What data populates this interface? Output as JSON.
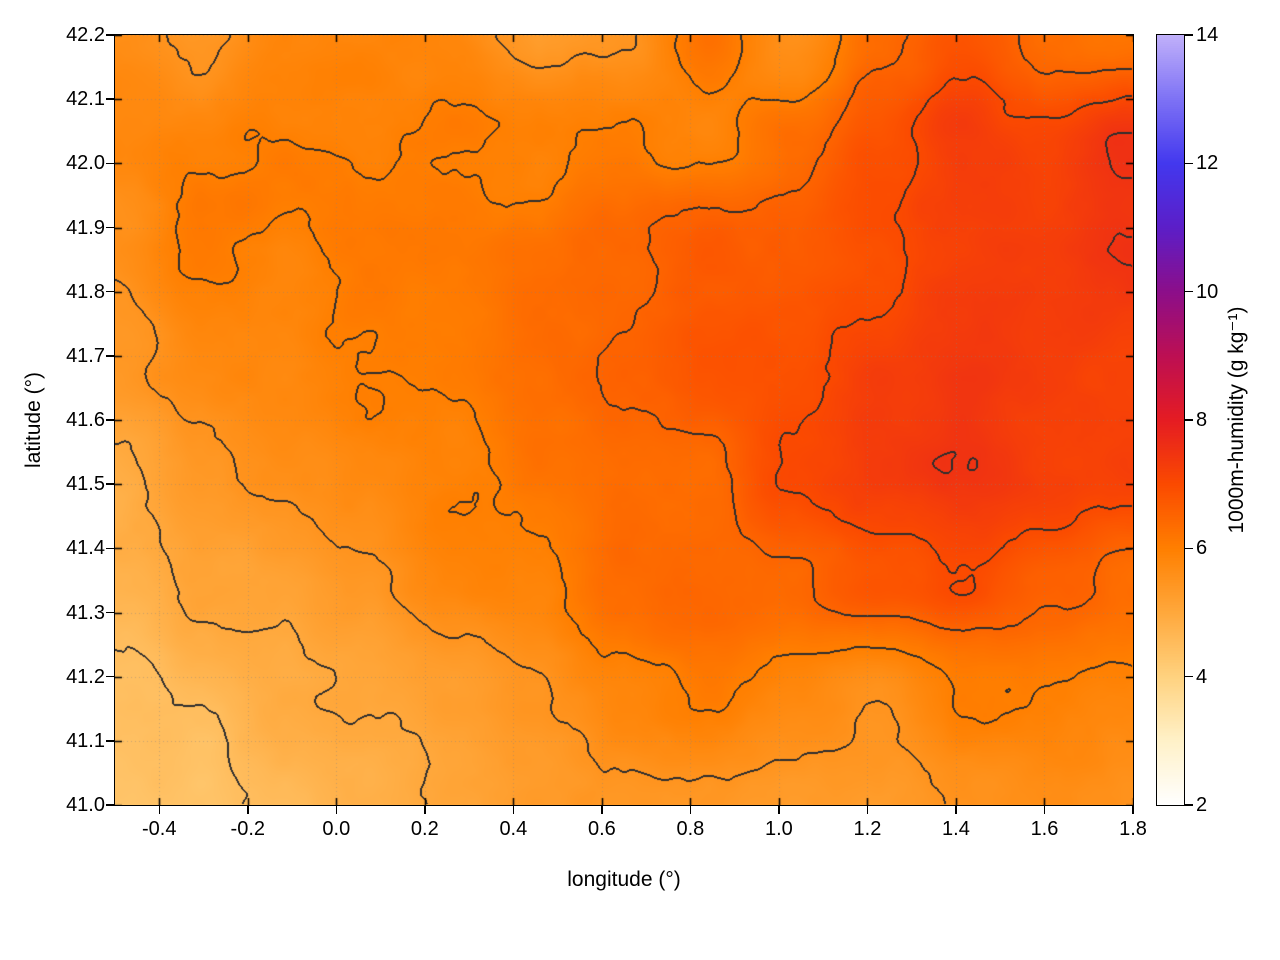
{
  "chart_data": {
    "type": "heatmap",
    "title": "",
    "xlabel": "longitude (°)",
    "ylabel": "latitude (°)",
    "colorbar_label": "1000m-humidity (g kg⁻¹)",
    "xlim": [
      -0.5,
      1.8
    ],
    "ylim": [
      41.0,
      42.2
    ],
    "grid": {
      "show": true,
      "color": "rgba(130,130,130,0.45)"
    },
    "x_ticks": [
      -0.4,
      -0.2,
      0.0,
      0.2,
      0.4,
      0.6,
      0.8,
      1.0,
      1.2,
      1.4,
      1.6,
      1.8
    ],
    "x_tick_labels": [
      "-0.4",
      "-0.2",
      "0.0",
      "0.2",
      "0.4",
      "0.6",
      "0.8",
      "1.0",
      "1.2",
      "1.4",
      "1.6",
      "1.8"
    ],
    "y_ticks": [
      41.0,
      41.1,
      41.2,
      41.3,
      41.4,
      41.5,
      41.6,
      41.7,
      41.8,
      41.9,
      42.0,
      42.1,
      42.2
    ],
    "y_tick_labels": [
      "41.0",
      "41.1",
      "41.2",
      "41.3",
      "41.4",
      "41.5",
      "41.6",
      "41.7",
      "41.8",
      "41.9",
      "42.0",
      "42.1",
      "42.2"
    ],
    "colorbar": {
      "range": [
        2,
        14
      ],
      "ticks": [
        2,
        4,
        6,
        8,
        10,
        12,
        14
      ],
      "tick_labels": [
        "2",
        "4",
        "6",
        "8",
        "10",
        "12",
        "14"
      ]
    },
    "palette": [
      {
        "value": 2,
        "color": "#ffffff"
      },
      {
        "value": 3,
        "color": "#fff1c8"
      },
      {
        "value": 4,
        "color": "#ffd27f"
      },
      {
        "value": 5,
        "color": "#ffa83c"
      },
      {
        "value": 6,
        "color": "#ff7f00"
      },
      {
        "value": 7,
        "color": "#fb4a00"
      },
      {
        "value": 8,
        "color": "#e51c23"
      },
      {
        "value": 9,
        "color": "#bd0f53"
      },
      {
        "value": 10,
        "color": "#8c0e8a"
      },
      {
        "value": 11,
        "color": "#5c1ec8"
      },
      {
        "value": 12,
        "color": "#4338ee"
      },
      {
        "value": 13,
        "color": "#7e72f5"
      },
      {
        "value": 14,
        "color": "#c0b0fa"
      }
    ],
    "contour_levels": [
      4.5,
      5.0,
      5.5,
      6.0,
      6.5,
      7.0,
      7.5
    ],
    "contour_color": "#2e2e2e",
    "field": {
      "lon_points": [
        -0.5,
        -0.31,
        -0.12,
        0.08,
        0.27,
        0.46,
        0.65,
        0.84,
        1.03,
        1.23,
        1.42,
        1.61,
        1.8
      ],
      "lat_points": [
        42.2,
        42.03,
        41.86,
        41.69,
        41.51,
        41.34,
        41.17,
        41.0
      ],
      "values": [
        [
          5.7,
          5.4,
          5.8,
          6.0,
          5.8,
          5.4,
          5.6,
          6.1,
          5.5,
          6.4,
          6.9,
          6.2,
          6.1
        ],
        [
          5.8,
          6.0,
          6.1,
          6.0,
          6.1,
          5.9,
          6.0,
          5.9,
          6.4,
          6.9,
          7.2,
          7.1,
          7.7
        ],
        [
          5.6,
          6.0,
          5.9,
          6.1,
          6.2,
          6.3,
          6.4,
          6.6,
          6.7,
          7.0,
          7.2,
          7.2,
          7.6
        ],
        [
          5.3,
          5.6,
          5.9,
          6.1,
          6.1,
          6.3,
          6.5,
          6.7,
          6.9,
          7.2,
          7.4,
          7.3,
          7.2
        ],
        [
          4.9,
          5.3,
          5.6,
          5.9,
          6.0,
          6.2,
          6.3,
          6.5,
          7.0,
          7.4,
          7.5,
          7.3,
          7.1
        ],
        [
          4.7,
          5.0,
          5.2,
          5.5,
          5.8,
          6.0,
          6.3,
          6.5,
          6.4,
          6.8,
          7.0,
          6.6,
          6.4
        ],
        [
          4.4,
          4.6,
          4.9,
          5.1,
          5.3,
          5.6,
          5.8,
          6.0,
          5.7,
          5.6,
          5.9,
          6.0,
          5.9
        ],
        [
          4.3,
          4.4,
          4.6,
          4.8,
          5.0,
          5.2,
          5.5,
          5.3,
          5.2,
          5.3,
          5.5,
          5.7,
          5.6
        ]
      ]
    },
    "noise": {
      "seed": 11,
      "octaves": 4,
      "persistence": 0.5,
      "scale_x": 12,
      "scale_y": 9,
      "amplitude": 0.25
    }
  }
}
